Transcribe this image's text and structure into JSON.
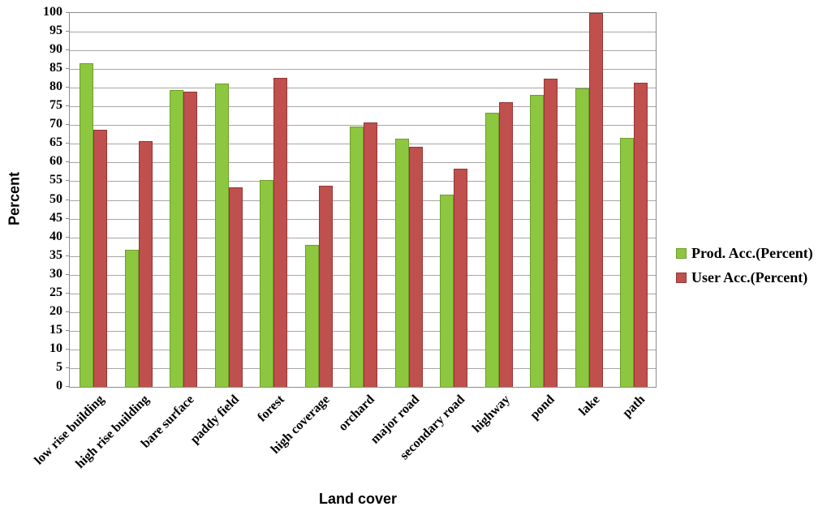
{
  "chart_data": {
    "type": "bar",
    "title": "",
    "xlabel": "Land cover",
    "ylabel": "Percent",
    "ylim": [
      0,
      100
    ],
    "ytick_step": 5,
    "grid": true,
    "legend_position": "right",
    "categories": [
      "low rise building",
      "high rise building",
      "bare surface",
      "paddy field",
      "forest",
      "high coverage",
      "orchard",
      "major road",
      "secondary road",
      "highway",
      "pond",
      "lake",
      "path"
    ],
    "series": [
      {
        "name": "Prod. Acc.(Percent)",
        "color": "#8dc73f",
        "border_color": "#6e9e2d",
        "values": [
          86.5,
          36.6,
          79.4,
          81.1,
          55.3,
          38.0,
          69.6,
          66.3,
          51.4,
          73.3,
          78.0,
          79.8,
          66.5
        ]
      },
      {
        "name": "User Acc.(Percent)",
        "color": "#c0504d",
        "border_color": "#943634",
        "values": [
          68.7,
          65.8,
          79.0,
          53.4,
          82.6,
          53.8,
          70.8,
          64.3,
          58.4,
          76.2,
          82.4,
          100.0,
          81.4
        ]
      }
    ],
    "colors": {
      "gridline": "#a6a6a6",
      "plot_border": "#8c8c8c",
      "text": "#000000",
      "background": "#ffffff"
    }
  }
}
